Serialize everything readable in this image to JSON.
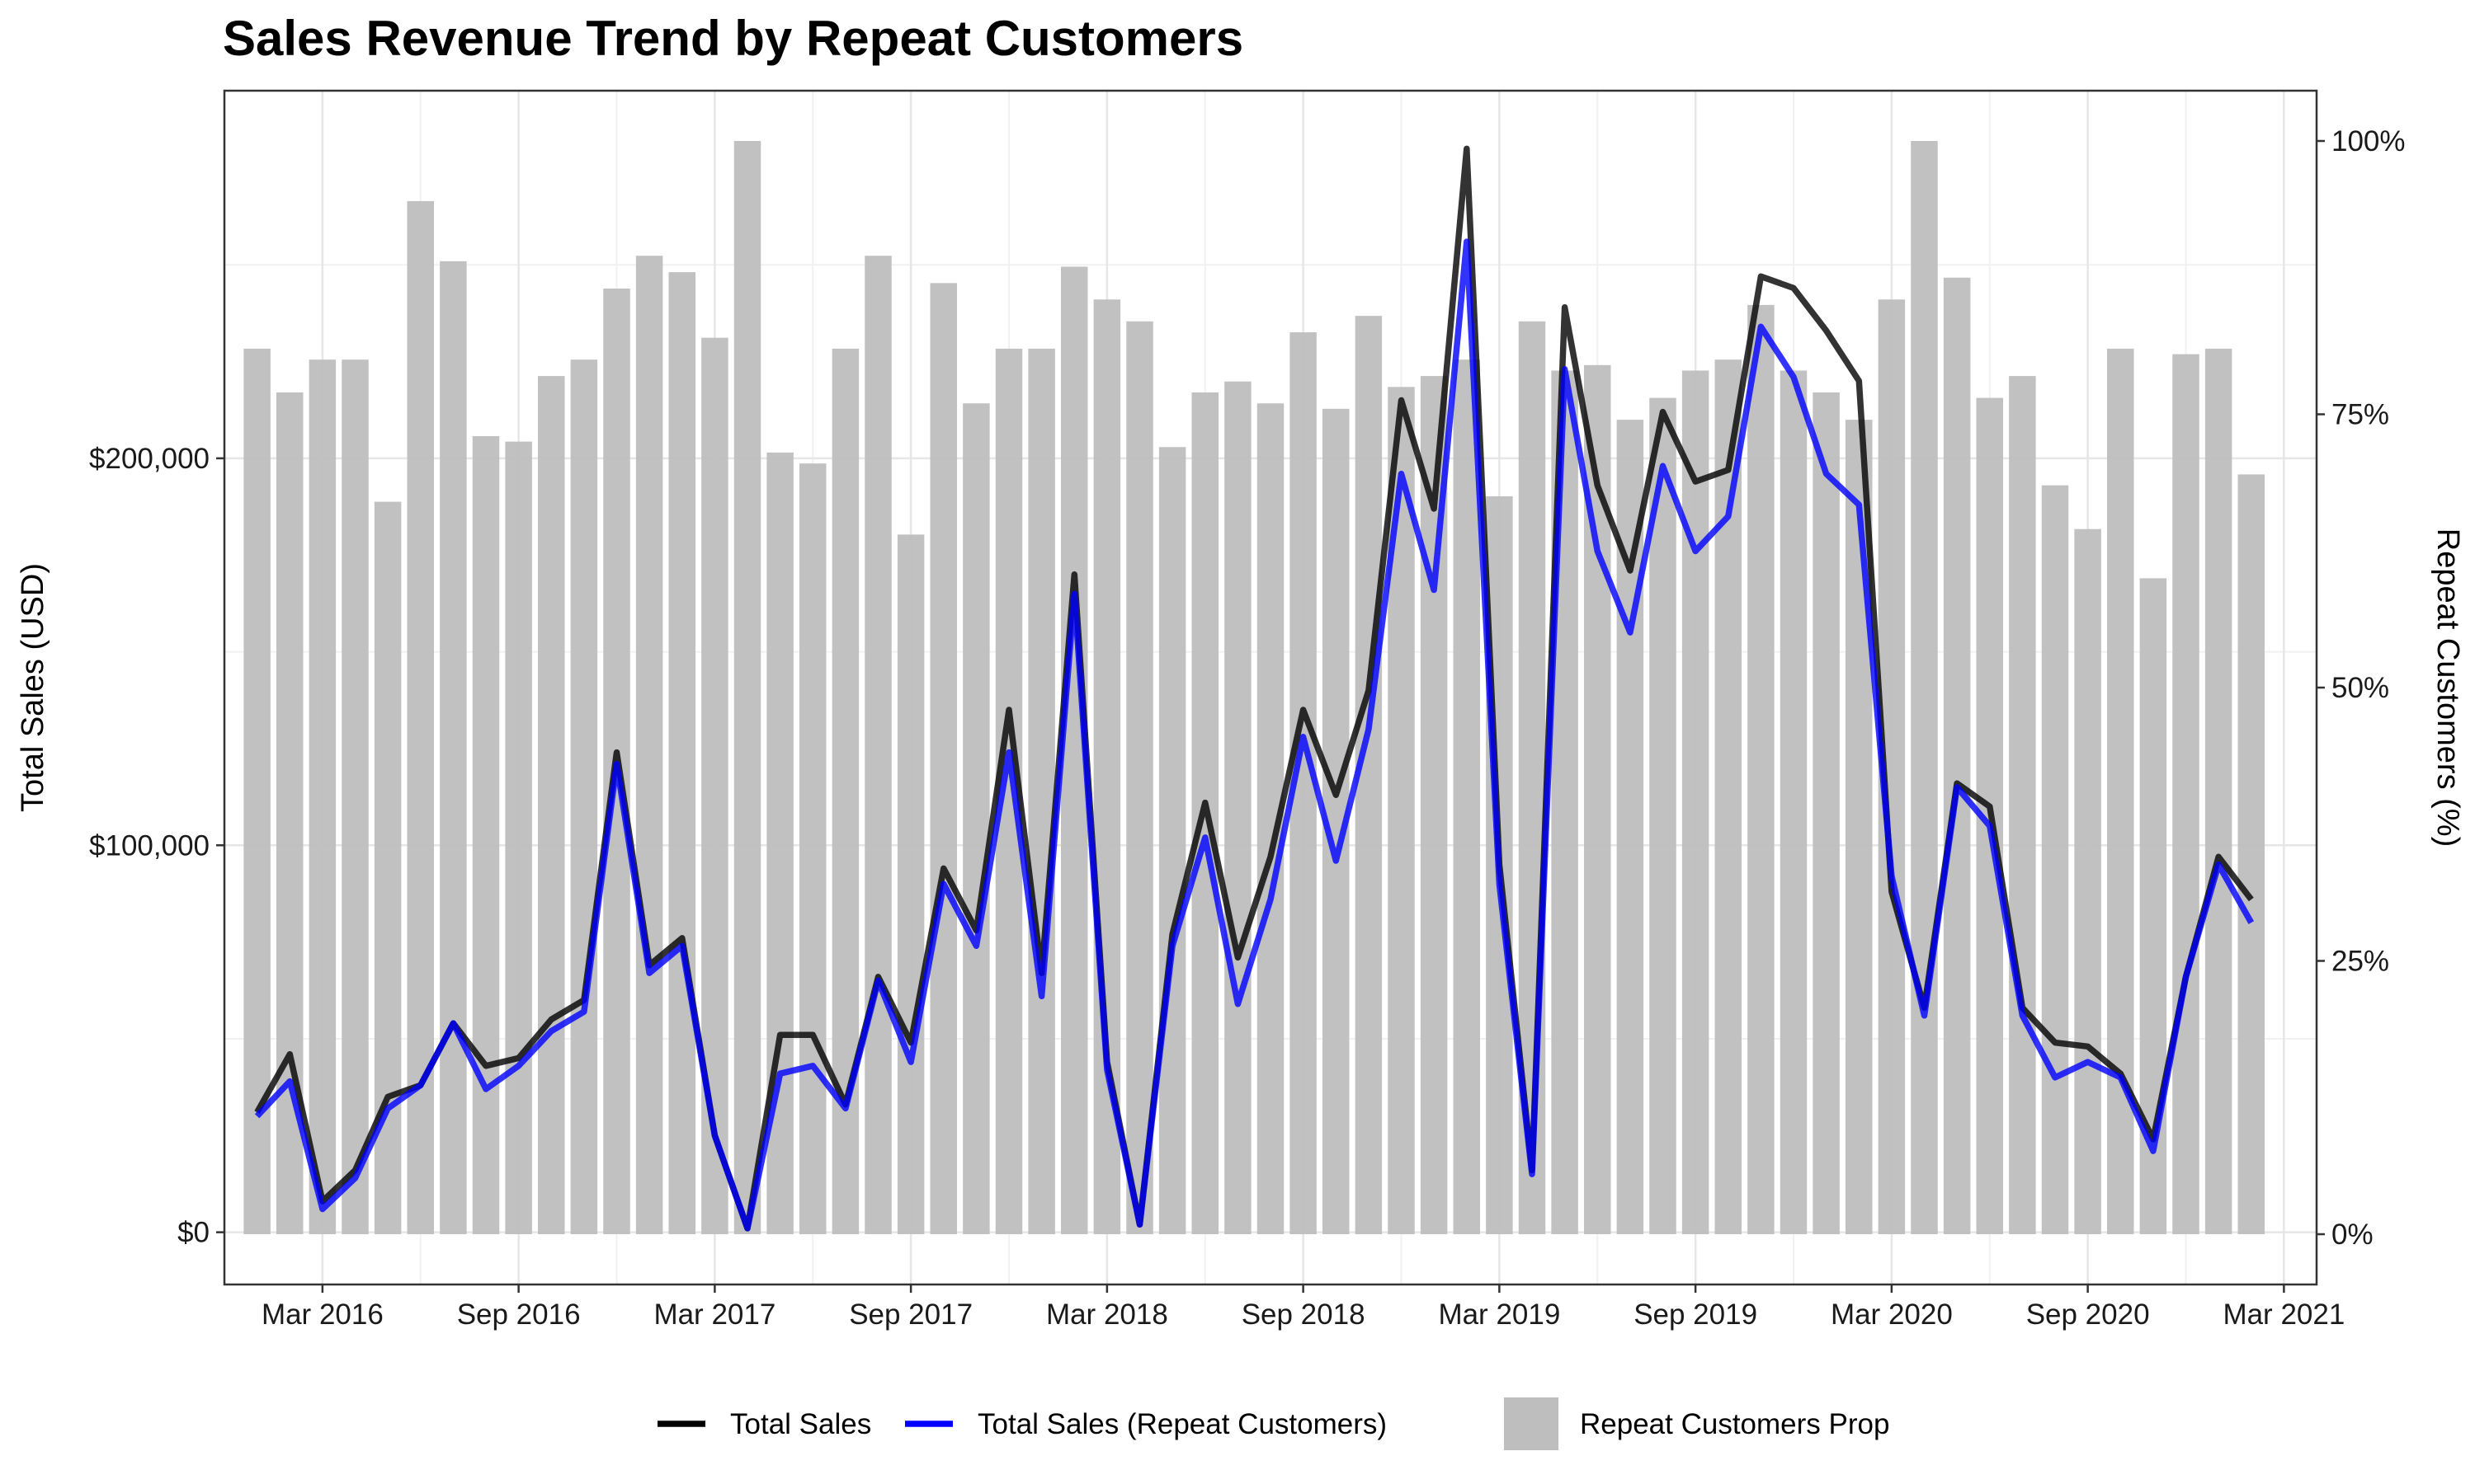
{
  "chart_data": {
    "type": "bar",
    "title": "Sales Revenue Trend by Repeat Customers",
    "ylabel": "Total Sales (USD)",
    "y2label": "Repeat Customers (%)",
    "ylim": [
      -13500,
      295000
    ],
    "y2lim": [
      -0.046,
      1.046
    ],
    "y_ticks": [
      0,
      100000,
      200000
    ],
    "y_tick_labels": [
      "$0",
      "$100,000",
      "$200,000"
    ],
    "y2_ticks": [
      0,
      0.25,
      0.5,
      0.75,
      1.0
    ],
    "y2_tick_labels": [
      "0%",
      "25%",
      "50%",
      "75%",
      "100%"
    ],
    "x_ticks": [
      "2016-03",
      "2016-09",
      "2017-03",
      "2017-09",
      "2018-03",
      "2018-09",
      "2019-03",
      "2019-09",
      "2020-03",
      "2020-09",
      "2021-03"
    ],
    "x_tick_labels": [
      "Mar 2016",
      "Sep 2016",
      "Mar 2017",
      "Sep 2017",
      "Mar 2018",
      "Sep 2018",
      "Mar 2019",
      "Sep 2019",
      "Mar 2020",
      "Sep 2020",
      "Mar 2021"
    ],
    "x_start": "2015-12",
    "x_end": "2021-04",
    "grid": true,
    "legend_position": "bottom",
    "colors": {
      "total": "#000000",
      "repeat": "#0000FF",
      "bars": "#BEBEBE"
    },
    "x": [
      "2016-01",
      "2016-02",
      "2016-03",
      "2016-04",
      "2016-05",
      "2016-06",
      "2016-07",
      "2016-08",
      "2016-09",
      "2016-10",
      "2016-11",
      "2016-12",
      "2017-01",
      "2017-02",
      "2017-03",
      "2017-04",
      "2017-05",
      "2017-06",
      "2017-07",
      "2017-08",
      "2017-09",
      "2017-10",
      "2017-11",
      "2017-12",
      "2018-01",
      "2018-02",
      "2018-03",
      "2018-04",
      "2018-05",
      "2018-06",
      "2018-07",
      "2018-08",
      "2018-09",
      "2018-10",
      "2018-11",
      "2018-12",
      "2019-01",
      "2019-02",
      "2019-03",
      "2019-04",
      "2019-05",
      "2019-06",
      "2019-07",
      "2019-08",
      "2019-09",
      "2019-10",
      "2019-11",
      "2019-12",
      "2020-01",
      "2020-02",
      "2020-03",
      "2020-04",
      "2020-05",
      "2020-06",
      "2020-07",
      "2020-08",
      "2020-09",
      "2020-10",
      "2020-11",
      "2020-12",
      "2021-01",
      "2021-02"
    ],
    "series": [
      {
        "name": "Total Sales",
        "kind": "line",
        "axis": "left",
        "values": [
          31000,
          46000,
          8000,
          16000,
          35000,
          38000,
          54000,
          43000,
          45000,
          55000,
          60000,
          124000,
          69000,
          76000,
          25000,
          1000,
          51000,
          51000,
          33000,
          66000,
          49000,
          94000,
          78000,
          135000,
          67000,
          170000,
          44000,
          2000,
          77000,
          111000,
          71000,
          97000,
          135000,
          113000,
          140000,
          215000,
          187000,
          280000,
          95000,
          16000,
          239000,
          193000,
          171000,
          212000,
          194000,
          197000,
          247000,
          244000,
          233000,
          220000,
          88000,
          58000,
          116000,
          110000,
          58000,
          49000,
          48000,
          41000,
          24000,
          66000,
          97000,
          86000
        ]
      },
      {
        "name": "Total Sales (Repeat Customers)",
        "kind": "line",
        "axis": "left",
        "values": [
          30000,
          39000,
          6000,
          14000,
          32000,
          38000,
          54000,
          37000,
          43000,
          52000,
          57000,
          121000,
          67000,
          74000,
          25000,
          1000,
          41000,
          43000,
          32000,
          65000,
          44000,
          90000,
          74000,
          124000,
          61000,
          165000,
          42000,
          2000,
          74000,
          102000,
          59000,
          86000,
          128000,
          96000,
          130000,
          196000,
          166000,
          256000,
          90000,
          15000,
          223000,
          176000,
          155000,
          198000,
          176000,
          185000,
          234000,
          221000,
          196000,
          188000,
          92000,
          56000,
          115000,
          105000,
          56000,
          40000,
          44000,
          40000,
          21000,
          66000,
          95000,
          80000
        ]
      },
      {
        "name": "Repeat Customers Prop",
        "kind": "bar",
        "axis": "right",
        "values": [
          0.81,
          0.77,
          0.8,
          0.8,
          0.67,
          0.945,
          0.89,
          0.73,
          0.725,
          0.785,
          0.8,
          0.865,
          0.895,
          0.88,
          0.82,
          1.0,
          0.715,
          0.705,
          0.81,
          0.895,
          0.64,
          0.87,
          0.76,
          0.81,
          0.81,
          0.885,
          0.855,
          0.835,
          0.72,
          0.77,
          0.78,
          0.76,
          0.825,
          0.755,
          0.84,
          0.775,
          0.785,
          0.8,
          0.675,
          0.835,
          0.79,
          0.795,
          0.745,
          0.765,
          0.79,
          0.8,
          0.85,
          0.79,
          0.77,
          0.745,
          0.855,
          1.0,
          0.875,
          0.765,
          0.785,
          0.685,
          0.645,
          0.81,
          0.6,
          0.805,
          0.81,
          0.695
        ]
      }
    ]
  }
}
